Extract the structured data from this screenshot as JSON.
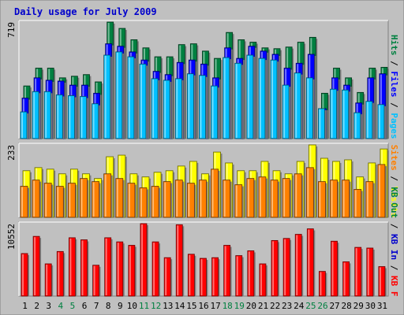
{
  "colors": {
    "background": "#c0c0c0",
    "panel": "#ffffff",
    "title": "#0000cc",
    "hits": "#008040",
    "files": "#0000ff",
    "pages": "#00c0ff",
    "visits": "#ffff00",
    "sites": "#ff8000",
    "kbf": "#ff0000",
    "kbin": "#0000cc",
    "kbout": "#008040",
    "weekend": "#008040",
    "weekday": "#000000"
  },
  "chart_data": [
    {
      "type": "bar",
      "title": "Daily usage for July 2009",
      "ymax_label": "719",
      "ymax": 719,
      "legend": [
        {
          "text": "Pages",
          "color": "#00c0ff"
        },
        {
          "text": "Files",
          "color": "#0000ff"
        },
        {
          "text": "Hits",
          "color": "#008040"
        }
      ],
      "categories": [
        "1",
        "2",
        "3",
        "4",
        "5",
        "6",
        "7",
        "8",
        "9",
        "10",
        "11",
        "12",
        "13",
        "14",
        "15",
        "16",
        "17",
        "18",
        "19",
        "20",
        "21",
        "22",
        "23",
        "24",
        "25",
        "26",
        "27",
        "28",
        "29",
        "30",
        "31"
      ],
      "weekend": [
        false,
        false,
        false,
        true,
        true,
        false,
        false,
        false,
        false,
        false,
        true,
        true,
        false,
        false,
        false,
        false,
        false,
        true,
        true,
        false,
        false,
        false,
        false,
        false,
        true,
        true,
        false,
        false,
        false,
        false,
        false
      ],
      "series": [
        {
          "name": "Hits",
          "values": [
            325,
            435,
            435,
            375,
            385,
            395,
            350,
            719,
            680,
            610,
            560,
            505,
            505,
            580,
            585,
            540,
            495,
            655,
            610,
            595,
            560,
            555,
            565,
            595,
            625,
            280,
            435,
            375,
            285,
            435,
            440
          ]
        },
        {
          "name": "Files",
          "values": [
            250,
            375,
            360,
            355,
            330,
            330,
            280,
            585,
            570,
            535,
            485,
            415,
            395,
            470,
            485,
            460,
            375,
            560,
            495,
            570,
            540,
            520,
            435,
            465,
            520,
            185,
            375,
            330,
            220,
            375,
            400
          ]
        },
        {
          "name": "Pages",
          "values": [
            165,
            290,
            290,
            270,
            265,
            260,
            215,
            515,
            535,
            505,
            460,
            370,
            360,
            370,
            400,
            390,
            325,
            500,
            465,
            515,
            495,
            485,
            330,
            405,
            375,
            185,
            305,
            300,
            160,
            230,
            210
          ]
        }
      ]
    },
    {
      "type": "bar",
      "ymax_label": "233",
      "ymax": 233,
      "legend": [
        {
          "text": "Visits",
          "color": "#ffff00"
        },
        {
          "text": "Sites",
          "color": "#ff8000"
        }
      ],
      "series": [
        {
          "name": "Visits",
          "values": [
            150,
            160,
            155,
            140,
            155,
            140,
            125,
            195,
            200,
            140,
            130,
            145,
            150,
            165,
            180,
            140,
            210,
            175,
            150,
            150,
            180,
            150,
            140,
            180,
            233,
            190,
            180,
            185,
            130,
            175,
            220
          ]
        },
        {
          "name": "Sites",
          "values": [
            100,
            120,
            110,
            100,
            110,
            125,
            115,
            140,
            125,
            110,
            95,
            100,
            115,
            120,
            110,
            120,
            155,
            120,
            105,
            125,
            130,
            120,
            125,
            140,
            160,
            115,
            120,
            120,
            90,
            115,
            170
          ]
        }
      ]
    },
    {
      "type": "bar",
      "ymax_label": "10552",
      "ymax": 10552,
      "legend": [
        {
          "text": "KB F",
          "color": "#ff0000"
        },
        {
          "text": "KB In",
          "color": "#0000cc"
        },
        {
          "text": "KB Out",
          "color": "#008040"
        }
      ],
      "series": [
        {
          "name": "KB F",
          "values": [
            6200,
            8700,
            4700,
            6500,
            8500,
            8200,
            4500,
            8500,
            7900,
            7400,
            10552,
            7900,
            5600,
            10400,
            6100,
            5500,
            5600,
            7400,
            5900,
            6600,
            4700,
            8100,
            8400,
            9000,
            9800,
            3600,
            8000,
            5000,
            7100,
            7000,
            4300
          ]
        }
      ]
    }
  ]
}
